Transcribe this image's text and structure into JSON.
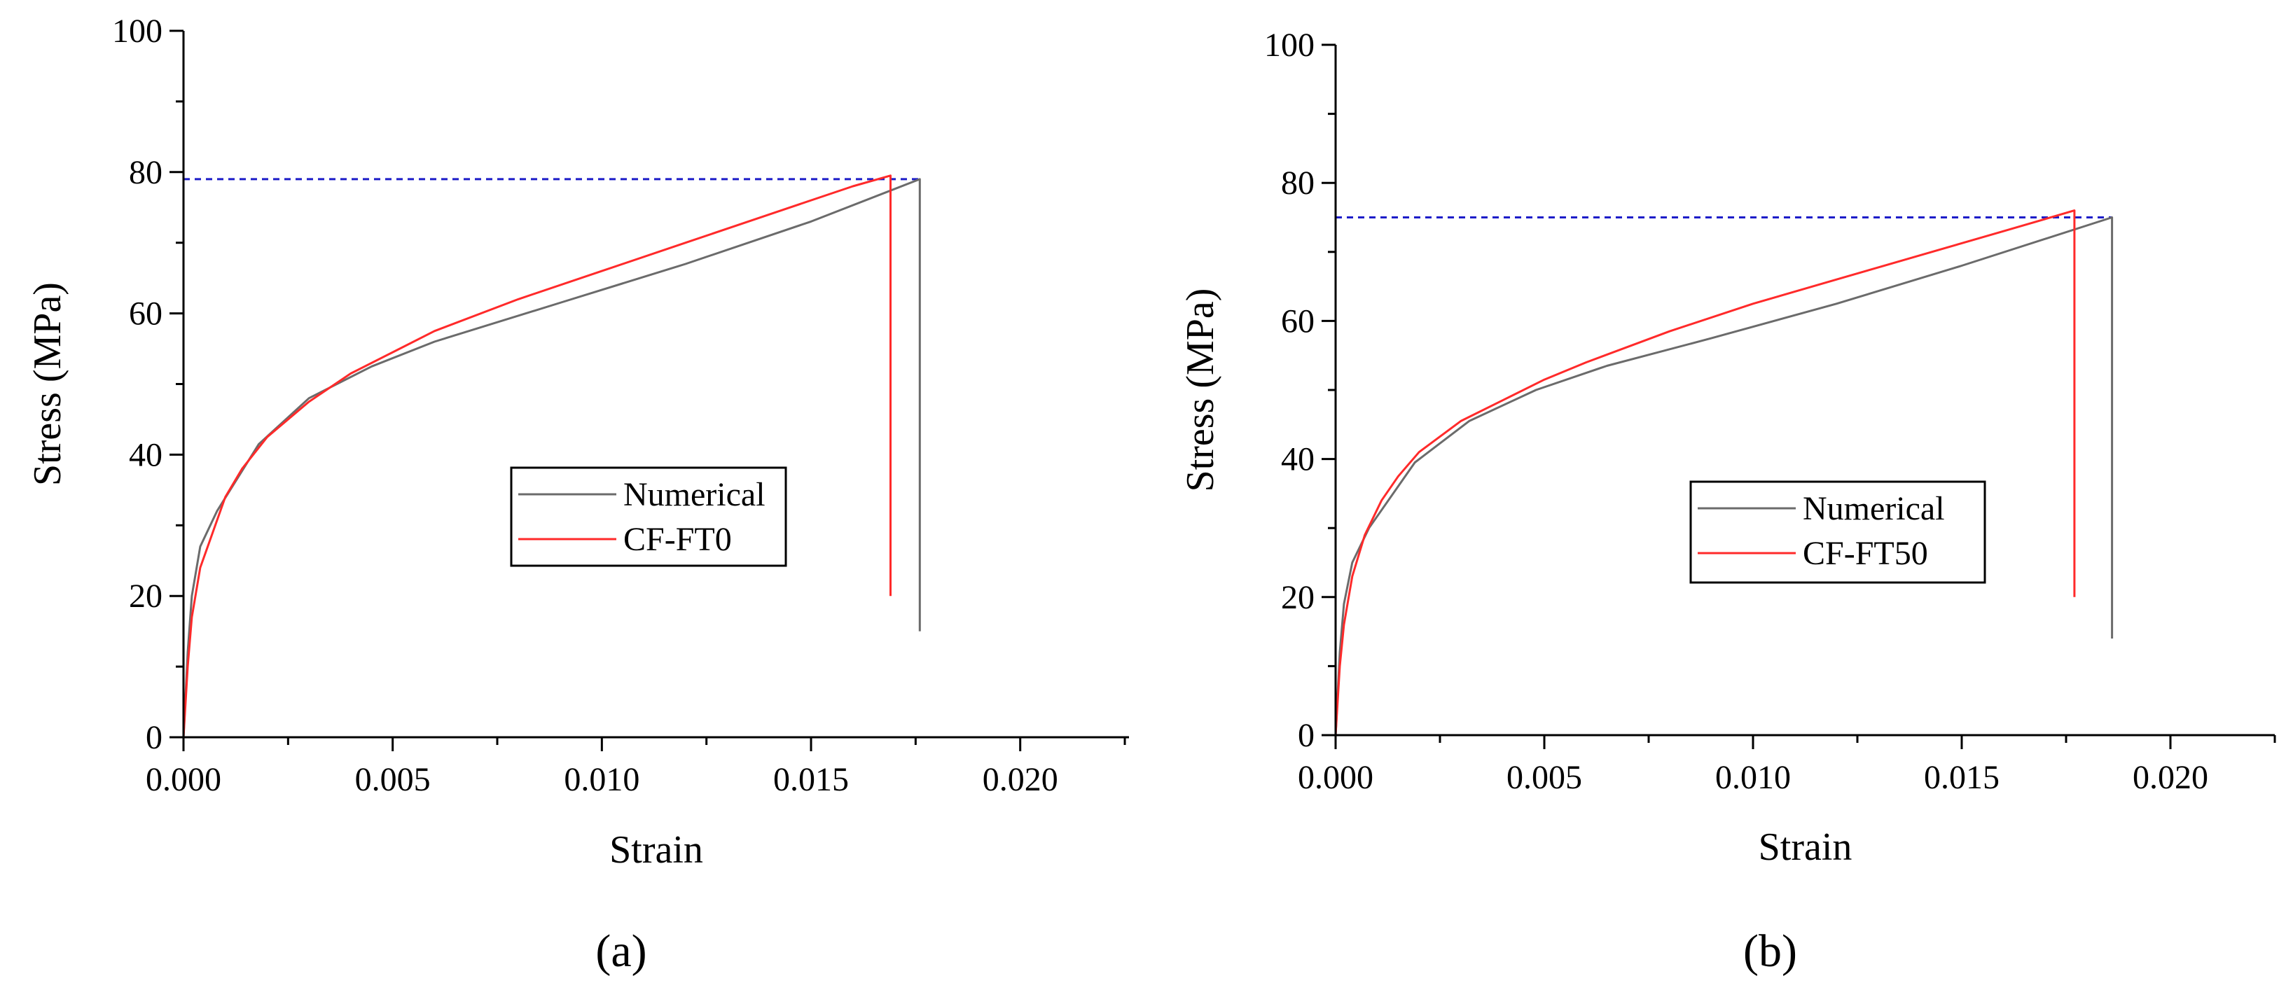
{
  "colors": {
    "numerical": "#6b6b6b",
    "experimental": "#ff2a2a",
    "peak_line": "#1c1cc8",
    "axis": "#000000"
  },
  "chart_data": [
    {
      "type": "line",
      "panel_label": "(a)",
      "xlabel": "Strain",
      "ylabel": "Stress (MPa)",
      "xlim": [
        0,
        0.0226
      ],
      "ylim": [
        0,
        100
      ],
      "x_ticks": [
        0.0,
        0.005,
        0.01,
        0.015,
        0.02
      ],
      "x_tick_labels": [
        "0.000",
        "0.005",
        "0.010",
        "0.015",
        "0.020"
      ],
      "y_ticks": [
        0,
        20,
        40,
        60,
        80,
        100
      ],
      "y_tick_labels": [
        "0",
        "20",
        "40",
        "60",
        "80",
        "100"
      ],
      "legend": {
        "position": "center-right"
      },
      "series": [
        {
          "name": "Numerical",
          "color_key": "numerical",
          "x": [
            0,
            0.0001,
            0.0002,
            0.0004,
            0.0008,
            0.0018,
            0.003,
            0.0045,
            0.006,
            0.009,
            0.012,
            0.015,
            0.0176,
            0.0176
          ],
          "y": [
            0,
            12,
            20,
            27,
            32,
            41.5,
            48,
            52.5,
            56,
            61.5,
            67,
            73,
            79,
            15
          ]
        },
        {
          "name": "CF-FT0",
          "color_key": "experimental",
          "x": [
            0,
            0.0001,
            0.0002,
            0.0004,
            0.0007,
            0.001,
            0.0014,
            0.002,
            0.003,
            0.004,
            0.005,
            0.006,
            0.008,
            0.01,
            0.012,
            0.014,
            0.016,
            0.0169,
            0.0169
          ],
          "y": [
            0,
            10,
            17,
            24,
            29,
            34,
            38,
            42.5,
            47.5,
            51.5,
            54.5,
            57.5,
            62,
            66,
            70,
            74,
            78,
            79.5,
            20
          ]
        }
      ],
      "reference_lines": [
        {
          "type": "horizontal",
          "y": 79,
          "x_range": [
            0,
            0.0176
          ],
          "style": "dashed",
          "color_key": "peak_line"
        }
      ]
    },
    {
      "type": "line",
      "panel_label": "(b)",
      "xlabel": "Strain",
      "ylabel": "Stress (MPa)",
      "xlim": [
        0,
        0.0225
      ],
      "ylim": [
        0,
        100
      ],
      "x_ticks": [
        0.0,
        0.005,
        0.01,
        0.015,
        0.02
      ],
      "x_tick_labels": [
        "0.000",
        "0.005",
        "0.010",
        "0.015",
        "0.020"
      ],
      "y_ticks": [
        0,
        20,
        40,
        60,
        80,
        100
      ],
      "y_tick_labels": [
        "0",
        "20",
        "40",
        "60",
        "80",
        "100"
      ],
      "legend": {
        "position": "center-right"
      },
      "series": [
        {
          "name": "Numerical",
          "color_key": "numerical",
          "x": [
            0,
            0.0001,
            0.0002,
            0.0004,
            0.0008,
            0.0019,
            0.0032,
            0.0048,
            0.0065,
            0.009,
            0.012,
            0.015,
            0.0186,
            0.0186
          ],
          "y": [
            0,
            12,
            19,
            25,
            30,
            39.5,
            45.5,
            50,
            53.5,
            57.5,
            62.5,
            68,
            75,
            14
          ]
        },
        {
          "name": "CF-FT50",
          "color_key": "experimental",
          "x": [
            0,
            0.0001,
            0.0002,
            0.0004,
            0.0007,
            0.0011,
            0.0015,
            0.002,
            0.003,
            0.004,
            0.005,
            0.006,
            0.008,
            0.01,
            0.012,
            0.014,
            0.016,
            0.0177,
            0.0177
          ],
          "y": [
            0,
            10,
            16,
            23,
            29,
            34,
            37.5,
            41,
            45.5,
            48.5,
            51.5,
            54,
            58.5,
            62.5,
            66,
            69.5,
            73,
            76,
            20
          ]
        }
      ],
      "reference_lines": [
        {
          "type": "horizontal",
          "y": 75,
          "x_range": [
            0,
            0.0186
          ],
          "style": "dashed",
          "color_key": "peak_line"
        }
      ]
    }
  ]
}
